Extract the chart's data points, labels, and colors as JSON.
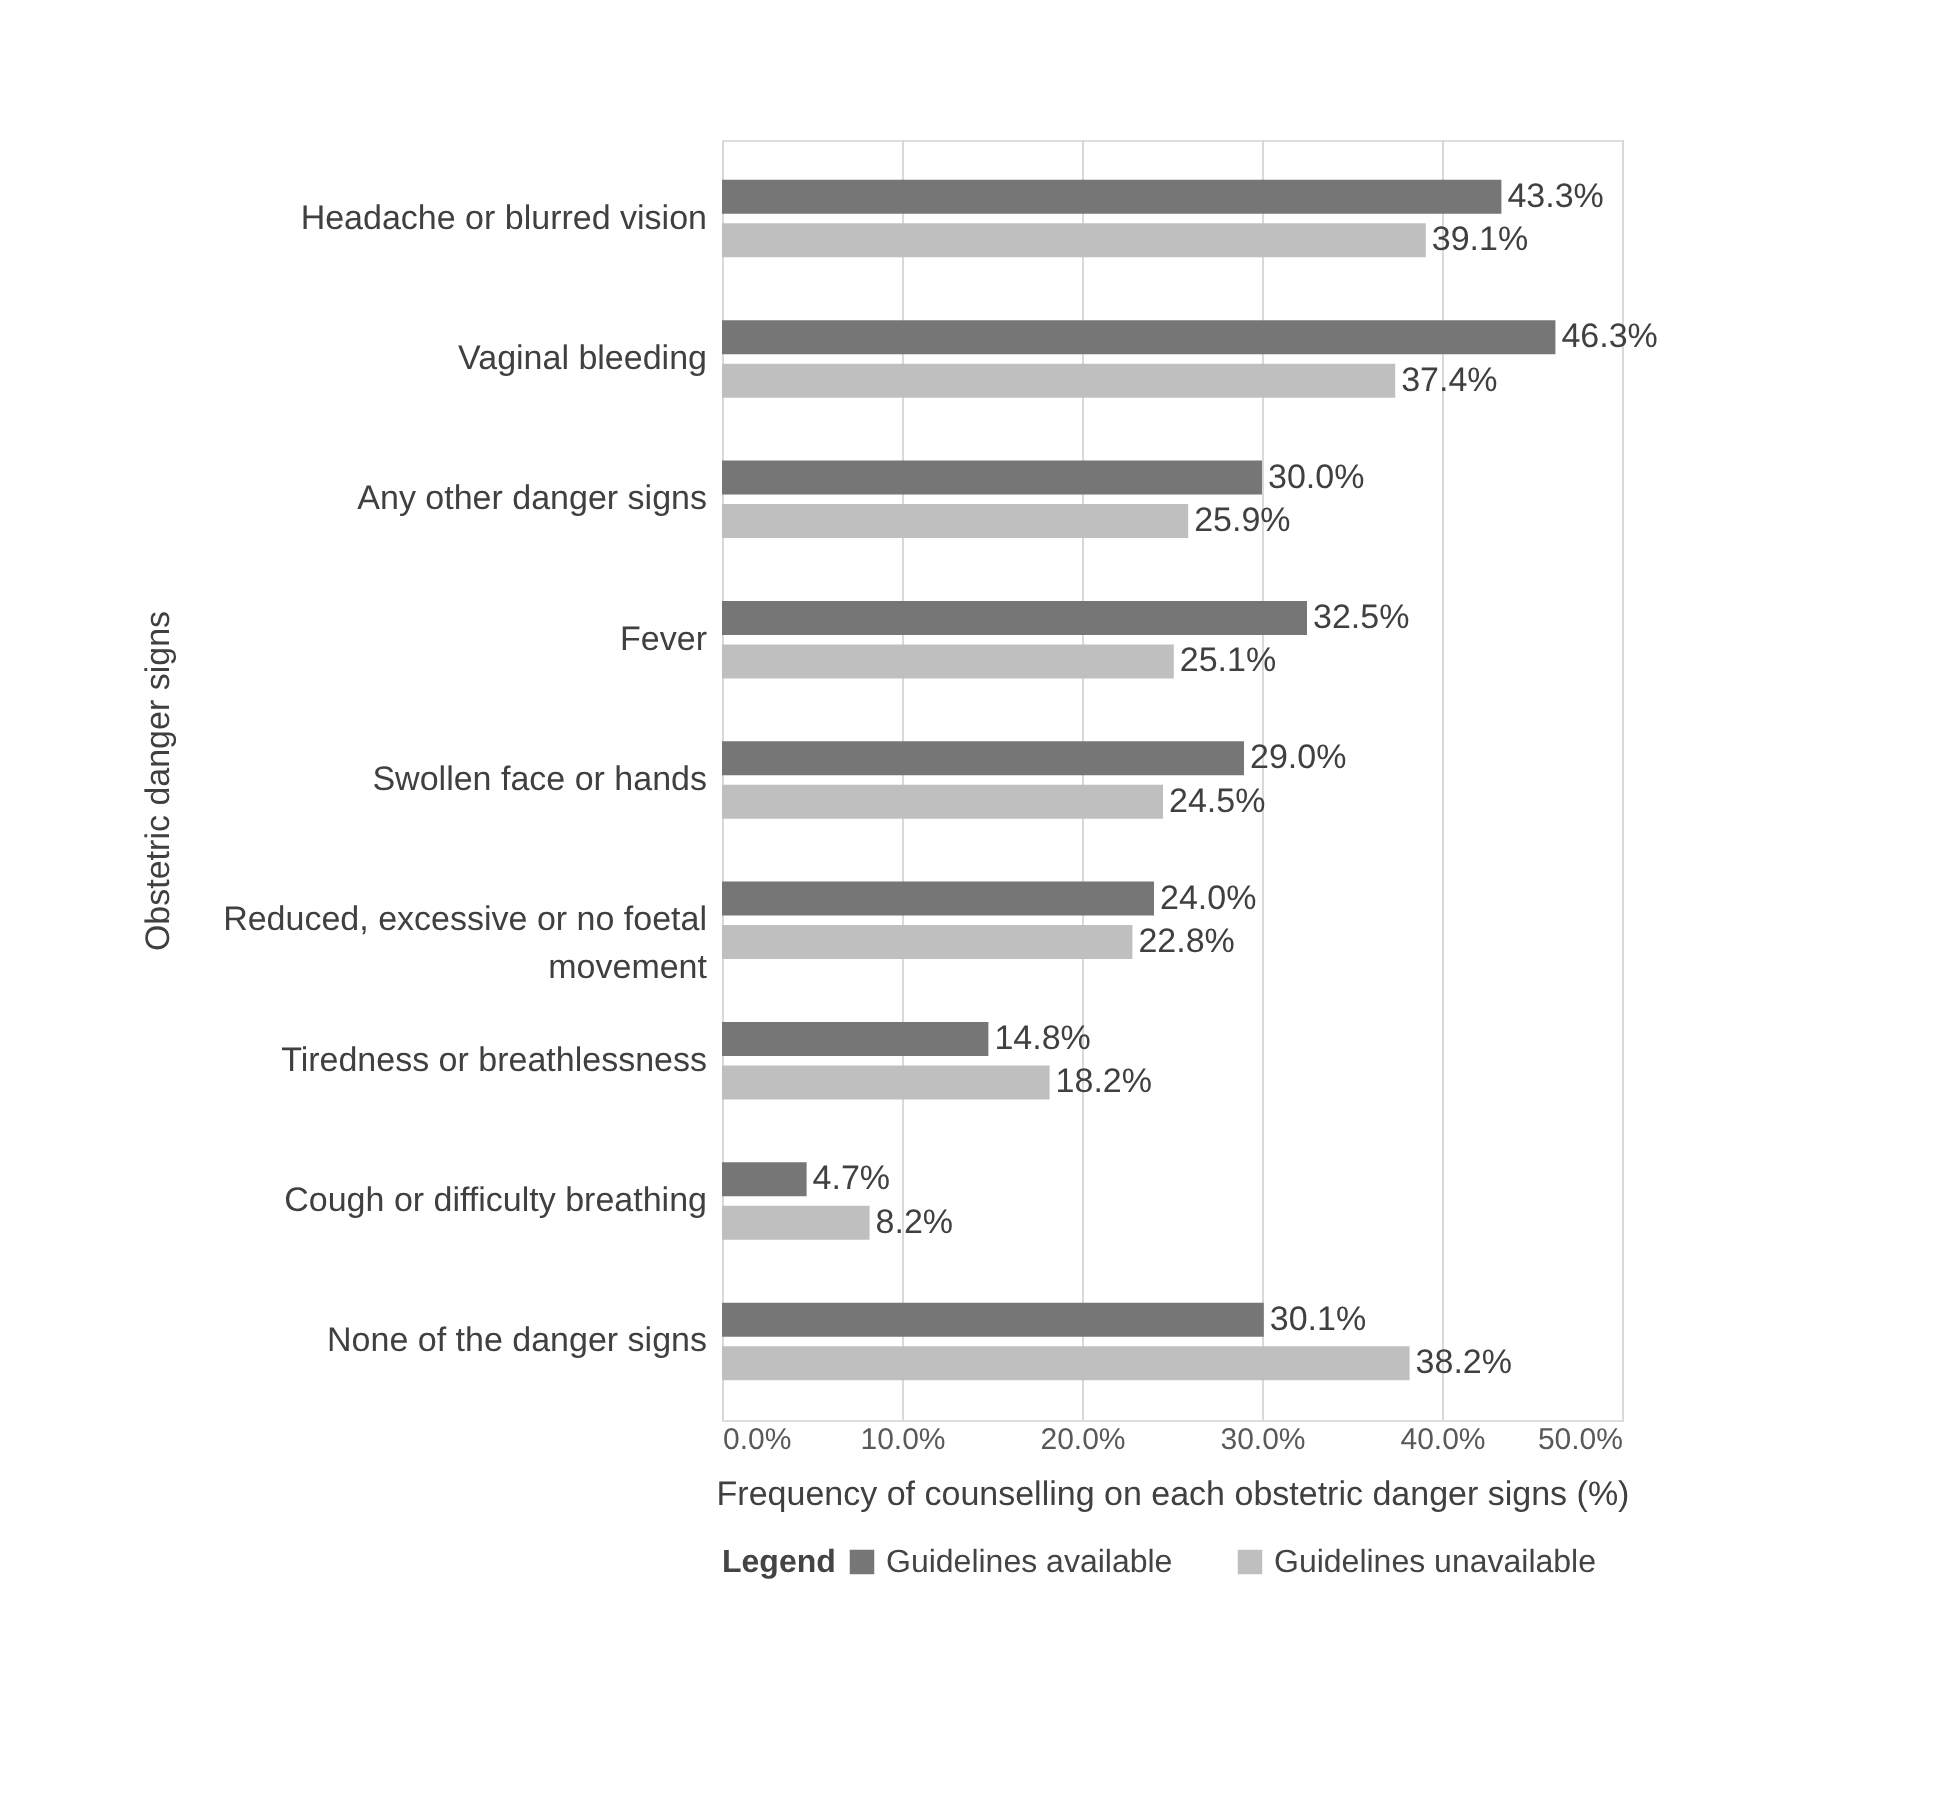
{
  "chart_data": {
    "type": "bar",
    "orientation": "horizontal",
    "xlabel": "Frequency of counselling on each obstetric danger signs (%)",
    "ylabel": "Obstetric danger signs",
    "legend_title": "Legend",
    "legend": "bottom",
    "grid": "x",
    "categories": [
      "Headache or blurred vision",
      "Vaginal bleeding",
      "Any other danger signs",
      "Fever",
      "Swollen face or hands",
      "Reduced, excessive or no foetal movement",
      "Tiredness or breathlessness",
      "Cough or difficulty breathing",
      "None of the danger signs"
    ],
    "xlim": [
      0,
      50
    ],
    "xticks": [
      {
        "value": 0,
        "label": "0.0%"
      },
      {
        "value": 10,
        "label": "10.0%"
      },
      {
        "value": 20,
        "label": "20.0%"
      },
      {
        "value": 30,
        "label": "30.0%"
      },
      {
        "value": 40,
        "label": "40.0%"
      },
      {
        "value": 50,
        "label": "50.0%"
      }
    ],
    "series": [
      {
        "name": "Guidelines available",
        "color": "#767676",
        "values": [
          43.3,
          46.3,
          30.0,
          32.5,
          29.0,
          24.0,
          14.8,
          4.7,
          30.1
        ],
        "value_labels": [
          "43.3%",
          "46.3%",
          "30.0%",
          "32.5%",
          "29.0%",
          "24.0%",
          "14.8%",
          "4.7%",
          "30.1%"
        ]
      },
      {
        "name": "Guidelines unavailable",
        "color": "#bfbfbf",
        "values": [
          39.1,
          37.4,
          25.9,
          25.1,
          24.5,
          22.8,
          18.2,
          8.2,
          38.2
        ],
        "value_labels": [
          "39.1%",
          "37.4%",
          "25.9%",
          "25.1%",
          "24.5%",
          "22.8%",
          "18.2%",
          "8.2%",
          "38.2%"
        ]
      }
    ]
  }
}
